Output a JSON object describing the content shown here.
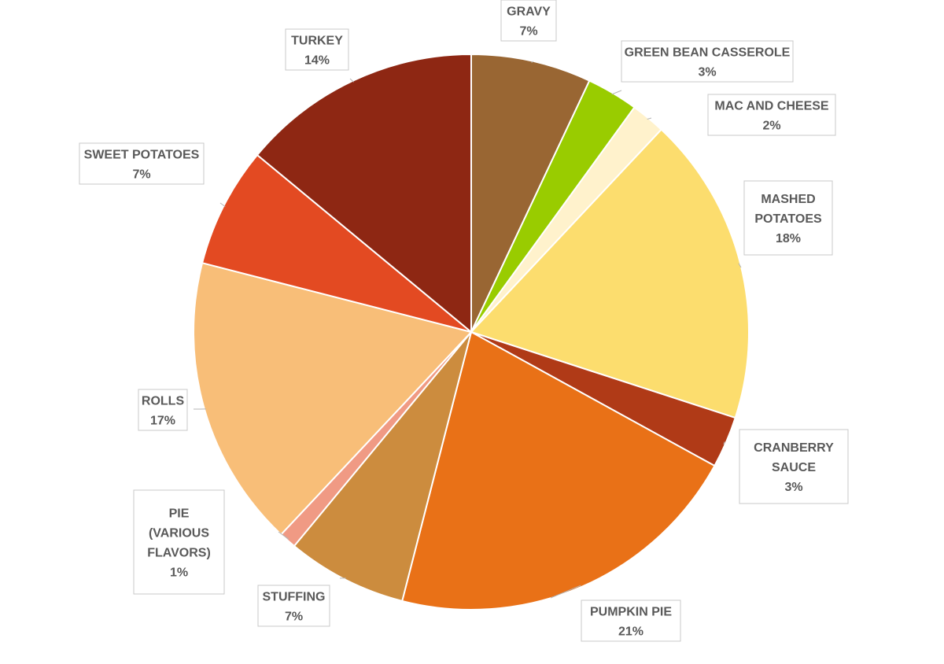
{
  "chart_data": {
    "type": "pie",
    "title": "",
    "start_angle_deg": 0,
    "direction": "clockwise",
    "slices": [
      {
        "label": "GRAVY",
        "value_label": "7%",
        "value": 7,
        "color": "#996633"
      },
      {
        "label": "GREEN BEAN CASSEROLE",
        "value_label": "3%",
        "value": 3,
        "color": "#99CC00"
      },
      {
        "label": "MAC AND CHEESE",
        "value_label": "2%",
        "value": 2,
        "color": "#FFF2CC"
      },
      {
        "label": "MASHED POTATOES",
        "value_label": "18%",
        "value": 18,
        "color": "#FCDD6E"
      },
      {
        "label": "CRANBERRY SAUCE",
        "value_label": "3%",
        "value": 3,
        "color": "#B03A17"
      },
      {
        "label": "PUMPKIN PIE",
        "value_label": "21%",
        "value": 21,
        "color": "#E97117"
      },
      {
        "label": "STUFFING",
        "value_label": "7%",
        "value": 7,
        "color": "#CC8C3E"
      },
      {
        "label": "PIE (VARIOUS FLAVORS)",
        "value_label": "1%",
        "value": 1,
        "color": "#F09A84"
      },
      {
        "label": "ROLLS",
        "value_label": "17%",
        "value": 17,
        "color": "#F8BE78"
      },
      {
        "label": "SWEET POTATOES",
        "value_label": "7%",
        "value": 7,
        "color": "#E34A22"
      },
      {
        "label": "TURKEY",
        "value_label": "14%",
        "value": 14,
        "color": "#8E2713"
      }
    ]
  }
}
